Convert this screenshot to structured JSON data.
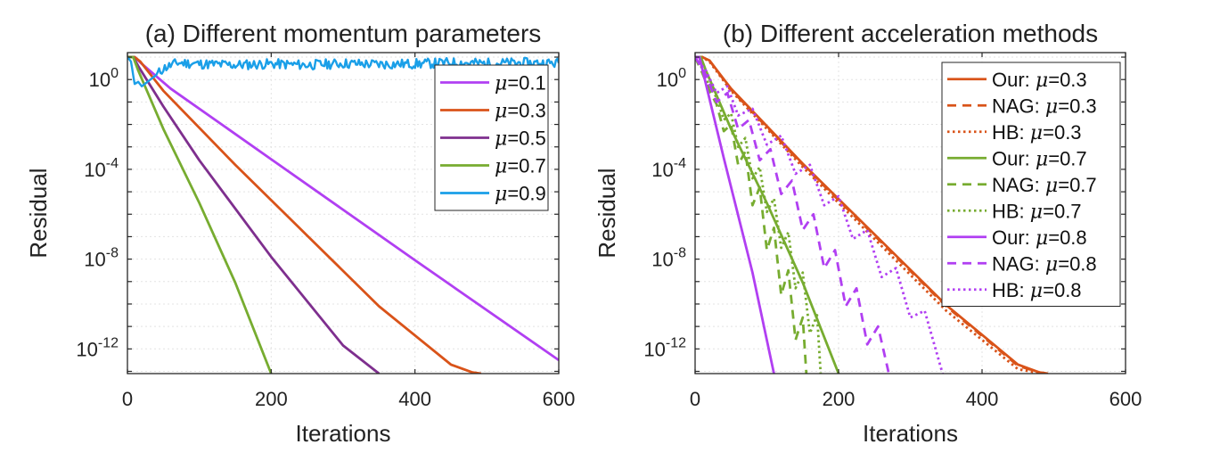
{
  "chart_data": [
    {
      "type": "line",
      "title": "(a) Different momentum parameters",
      "xlabel": "Iterations",
      "ylabel": "Residual",
      "xlim": [
        0,
        600
      ],
      "ylim_log10": [
        -13.1,
        1.2
      ],
      "y_scale": "log",
      "grid": true,
      "legend_position": "top-right",
      "xticks": [
        "0",
        "200",
        "400",
        "600"
      ],
      "yticks": [
        {
          "base": "10",
          "exp": "0",
          "log10": 0
        },
        {
          "base": "10",
          "exp": "-4",
          "log10": -4
        },
        {
          "base": "10",
          "exp": "-8",
          "log10": -8
        },
        {
          "base": "10",
          "exp": "-12",
          "log10": -12
        }
      ],
      "series": [
        {
          "name": "μ=0.1",
          "style": "solid",
          "color": "#B13FF2",
          "x": [
            0,
            10,
            20,
            60,
            200,
            400,
            600
          ],
          "y_log10": [
            1.0,
            1.0,
            0.7,
            -0.4,
            -3.55,
            -8.05,
            -12.5
          ]
        },
        {
          "name": "μ=0.3",
          "style": "solid",
          "color": "#D95319",
          "x": [
            0,
            10,
            18,
            50,
            150,
            250,
            350,
            450,
            480,
            492
          ],
          "y_log10": [
            1.0,
            1.0,
            0.8,
            -0.5,
            -3.8,
            -6.95,
            -10.1,
            -12.7,
            -13.05,
            -13.1
          ]
        },
        {
          "name": "μ=0.5",
          "style": "solid",
          "color": "#7E2F8E",
          "x": [
            0,
            8,
            15,
            50,
            100,
            200,
            300,
            350
          ],
          "y_log10": [
            1.0,
            1.0,
            0.6,
            -1.2,
            -3.6,
            -7.9,
            -11.85,
            -13.1
          ]
        },
        {
          "name": "μ=0.7",
          "style": "solid",
          "color": "#77AC30",
          "x": [
            0,
            8,
            15,
            50,
            100,
            150,
            200
          ],
          "y_log10": [
            1.0,
            1.0,
            0.4,
            -2.2,
            -5.5,
            -9.05,
            -13.1
          ]
        },
        {
          "name": "μ=0.9",
          "style": "noisy",
          "color": "#1A9FE8",
          "x": [
            0,
            5,
            10,
            15,
            20,
            30,
            40,
            50,
            70,
            100,
            150,
            200,
            250,
            300,
            350,
            400,
            450,
            500,
            550,
            600
          ],
          "y_log10": [
            1.0,
            0.8,
            -0.2,
            -0.1,
            -0.3,
            -0.05,
            0.2,
            0.5,
            0.75,
            0.7,
            0.65,
            0.7,
            0.65,
            0.72,
            0.68,
            0.7,
            0.75,
            0.72,
            0.74,
            0.73
          ]
        }
      ]
    },
    {
      "type": "line",
      "title": "(b) Different acceleration methods",
      "xlabel": "Iterations",
      "ylabel": "Residual",
      "xlim": [
        0,
        600
      ],
      "ylim_log10": [
        -13.1,
        1.2
      ],
      "y_scale": "log",
      "grid": true,
      "legend_position": "top-right",
      "xticks": [
        "0",
        "200",
        "400",
        "600"
      ],
      "yticks": [
        {
          "base": "10",
          "exp": "0",
          "log10": 0
        },
        {
          "base": "10",
          "exp": "-4",
          "log10": -4
        },
        {
          "base": "10",
          "exp": "-8",
          "log10": -8
        },
        {
          "base": "10",
          "exp": "-12",
          "log10": -12
        }
      ],
      "series": [
        {
          "name": "Our: μ=0.3",
          "style": "solid",
          "color": "#D95319",
          "x": [
            0,
            10,
            20,
            50,
            150,
            250,
            350,
            450,
            480,
            492
          ],
          "y_log10": [
            1.0,
            1.0,
            0.85,
            -0.4,
            -3.75,
            -6.9,
            -10.05,
            -12.7,
            -13.05,
            -13.1
          ]
        },
        {
          "name": "NAG: μ=0.3",
          "style": "dashed",
          "color": "#D95319",
          "x": [
            0,
            10,
            20,
            50,
            150,
            250,
            350,
            450,
            480,
            490
          ],
          "y_log10": [
            1.0,
            1.0,
            0.85,
            -0.45,
            -3.8,
            -6.95,
            -10.1,
            -12.75,
            -13.05,
            -13.1
          ]
        },
        {
          "name": "HB: μ=0.3",
          "style": "dotted",
          "color": "#D95319",
          "x": [
            0,
            10,
            20,
            50,
            150,
            250,
            350,
            450,
            475,
            485
          ],
          "y_log10": [
            1.0,
            1.0,
            0.8,
            -0.5,
            -3.9,
            -7.1,
            -10.3,
            -12.9,
            -13.05,
            -13.1
          ]
        },
        {
          "name": "Our: μ=0.7",
          "style": "solid",
          "color": "#77AC30",
          "x": [
            0,
            8,
            15,
            50,
            100,
            150,
            200
          ],
          "y_log10": [
            1.0,
            1.0,
            0.4,
            -2.2,
            -5.5,
            -9.05,
            -13.1
          ]
        },
        {
          "name": "NAG: μ=0.7",
          "style": "dashed",
          "color": "#77AC30",
          "x": [
            0,
            10,
            20,
            30,
            40,
            50,
            60,
            70,
            80,
            90,
            100,
            110,
            120,
            130,
            140,
            150,
            155
          ],
          "y_log10": [
            1.0,
            0.3,
            -0.5,
            -1.1,
            -2.3,
            -2.0,
            -3.8,
            -3.2,
            -5.6,
            -4.8,
            -7.6,
            -6.6,
            -9.6,
            -8.5,
            -11.6,
            -10.6,
            -13.1
          ]
        },
        {
          "name": "HB: μ=0.7",
          "style": "dotted",
          "color": "#77AC30",
          "x": [
            0,
            10,
            20,
            30,
            40,
            50,
            60,
            70,
            80,
            90,
            100,
            110,
            120,
            130,
            140,
            150,
            160,
            170,
            175
          ],
          "y_log10": [
            1.0,
            0.5,
            -0.3,
            -0.8,
            -1.8,
            -1.5,
            -3.0,
            -2.6,
            -4.4,
            -3.9,
            -5.9,
            -5.3,
            -7.5,
            -6.8,
            -9.3,
            -8.6,
            -11.3,
            -10.5,
            -13.1
          ]
        },
        {
          "name": "Our: μ=0.8",
          "style": "solid",
          "color": "#B13FF2",
          "x": [
            0,
            6,
            12,
            40,
            80,
            110
          ],
          "y_log10": [
            1.0,
            1.0,
            0.2,
            -3.5,
            -8.6,
            -13.1
          ]
        },
        {
          "name": "NAG: μ=0.8",
          "style": "dashed",
          "color": "#B13FF2",
          "x": [
            0,
            15,
            30,
            45,
            60,
            75,
            90,
            105,
            120,
            135,
            150,
            165,
            180,
            195,
            210,
            225,
            240,
            255,
            270
          ],
          "y_log10": [
            1.0,
            0.2,
            -1.0,
            -0.6,
            -2.2,
            -1.8,
            -3.6,
            -3.1,
            -5.1,
            -4.5,
            -6.7,
            -6.0,
            -8.4,
            -7.6,
            -10.1,
            -9.3,
            -11.8,
            -11.0,
            -13.1
          ]
        },
        {
          "name": "HB: μ=0.8",
          "style": "dotted",
          "color": "#B13FF2",
          "x": [
            0,
            15,
            30,
            45,
            60,
            80,
            100,
            120,
            140,
            160,
            180,
            200,
            220,
            240,
            260,
            280,
            300,
            320,
            345
          ],
          "y_log10": [
            1.0,
            0.4,
            -0.6,
            -0.3,
            -1.6,
            -1.3,
            -2.9,
            -2.5,
            -4.2,
            -3.8,
            -5.6,
            -5.2,
            -7.1,
            -6.7,
            -8.8,
            -8.4,
            -10.6,
            -10.3,
            -13.1
          ]
        }
      ]
    }
  ]
}
